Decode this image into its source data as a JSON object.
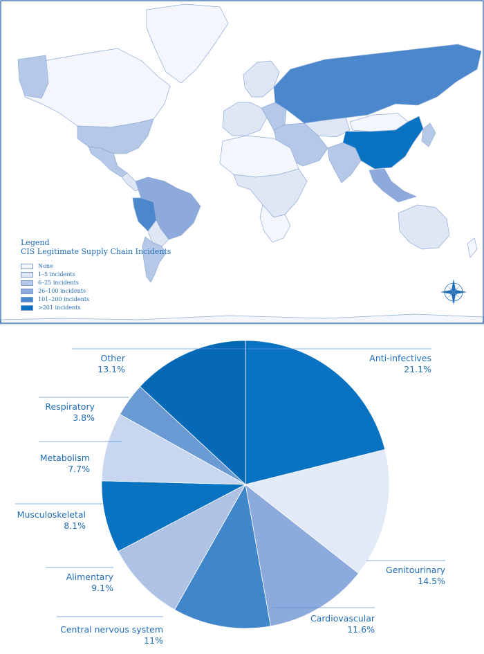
{
  "map": {
    "legend": {
      "title": "Legend",
      "subtitle": "CIS Legitimate Supply Chain Incidents",
      "items": [
        {
          "label": "None",
          "color": "#f3f6fc"
        },
        {
          "label": "1–5 incidents",
          "color": "#dfe7f5"
        },
        {
          "label": "6–25 incidents",
          "color": "#b6c8e8"
        },
        {
          "label": "26–100 incidents",
          "color": "#8eaadc"
        },
        {
          "label": "101–200 incidents",
          "color": "#4a87cc"
        },
        {
          "label": ">201 incidents",
          "color": "#0a73c1"
        }
      ]
    },
    "compass": "compass-rose-icon"
  },
  "chart_data": {
    "type": "pie",
    "start_angle_deg": 0,
    "direction": "clockwise",
    "slices": [
      {
        "label": "Anti-infectives",
        "percent_label": "21.1%",
        "value": 21.1,
        "color": "#0a73c1"
      },
      {
        "label": "Genitourinary",
        "percent_label": "14.5%",
        "value": 14.5,
        "color": "#e2eaf7"
      },
      {
        "label": "Cardiovascular",
        "percent_label": "11.6%",
        "value": 11.6,
        "color": "#8caadc"
      },
      {
        "label": "Central nervous system",
        "percent_label": "11%",
        "value": 11.0,
        "color": "#3f86ca"
      },
      {
        "label": "Alimentary",
        "percent_label": "9.1%",
        "value": 9.1,
        "color": "#aec2e6"
      },
      {
        "label": "Musculoskeletal",
        "percent_label": "8.1%",
        "value": 8.1,
        "color": "#0a73c1"
      },
      {
        "label": "Metabolism",
        "percent_label": "7.7%",
        "value": 7.7,
        "color": "#c8d6ef"
      },
      {
        "label": "Respiratory",
        "percent_label": "3.8%",
        "value": 3.8,
        "color": "#6a9ad4"
      },
      {
        "label": "Other",
        "percent_label": "13.1%",
        "value": 13.1,
        "color": "#0669b5"
      }
    ]
  }
}
